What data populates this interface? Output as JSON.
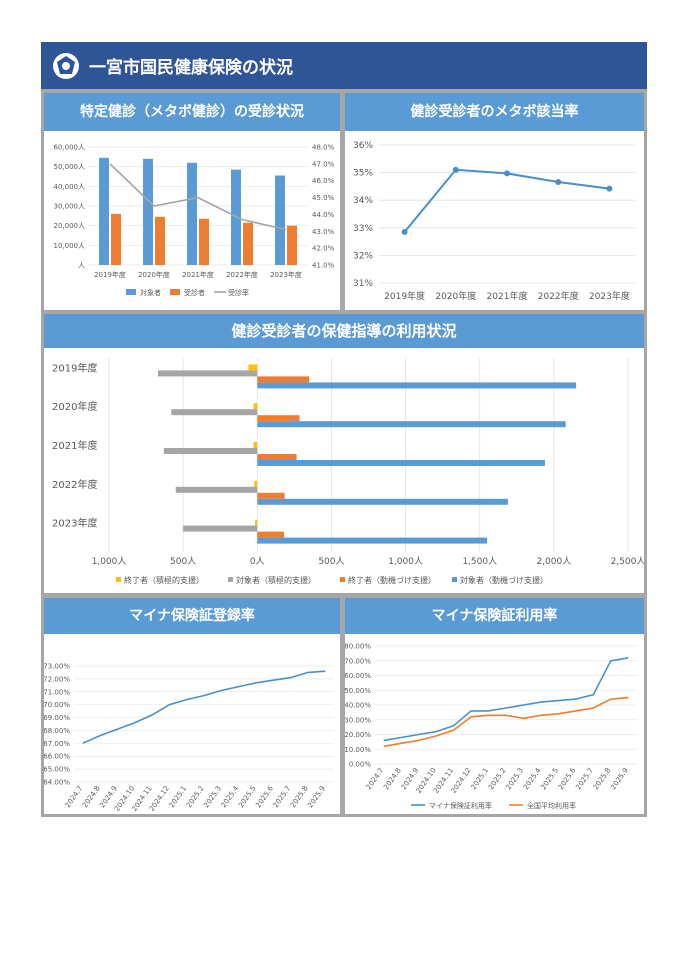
{
  "page": {
    "title": "一宮市国民健康保険の状況"
  },
  "colors": {
    "blue": "#5b9bd5",
    "orange": "#ed7d31",
    "gray": "#a5a5a5",
    "yellow": "#ffc000",
    "header": "#2f5597",
    "line": "#4a90c8"
  },
  "chart_data": [
    {
      "id": "checkup",
      "type": "bar",
      "title": "特定健診（メタボ健診）の受診状況",
      "categories": [
        "2019年度",
        "2020年度",
        "2021年度",
        "2022年度",
        "2023年度"
      ],
      "series": [
        {
          "name": "対象者",
          "kind": "bar",
          "axis": "left",
          "values": [
            54500,
            54000,
            52000,
            48500,
            45500
          ]
        },
        {
          "name": "受診者",
          "kind": "bar",
          "axis": "left",
          "values": [
            26000,
            24500,
            23500,
            21500,
            20000
          ]
        },
        {
          "name": "受診率",
          "kind": "line",
          "axis": "right",
          "values": [
            0.47,
            0.445,
            0.45,
            0.437,
            0.431
          ]
        }
      ],
      "ylim": [
        0,
        60000
      ],
      "y_ticks": [
        "人",
        "10,000人",
        "20,000人",
        "30,000人",
        "40,000人",
        "50,000人",
        "60,000人"
      ],
      "y2lim": [
        0.41,
        0.48
      ],
      "y2_ticks": [
        "41.0%",
        "42.0%",
        "43.0%",
        "44.0%",
        "45.0%",
        "46.0%",
        "47.0%",
        "48.0%"
      ],
      "legend": "bottom"
    },
    {
      "id": "metabo",
      "type": "line",
      "title": "健診受診者のメタボ該当率",
      "categories": [
        "2019年度",
        "2020年度",
        "2021年度",
        "2022年度",
        "2023年度"
      ],
      "values": [
        0.3285,
        0.351,
        0.3497,
        0.3466,
        0.3442
      ],
      "ylim": [
        0.31,
        0.36
      ],
      "y_ticks": [
        "31%",
        "32%",
        "33%",
        "34%",
        "35%",
        "36%"
      ]
    },
    {
      "id": "guidance",
      "type": "bar",
      "orientation": "horizontal",
      "title": "健診受診者の保健指導の利用状況",
      "categories": [
        "2019年度",
        "2020年度",
        "2021年度",
        "2022年度",
        "2023年度"
      ],
      "series": [
        {
          "name": "終了者（積極的支援）",
          "side": "left",
          "values": [
            60,
            25,
            25,
            20,
            15
          ]
        },
        {
          "name": "対象者（積極的支援）",
          "side": "left",
          "values": [
            670,
            580,
            630,
            550,
            500
          ]
        },
        {
          "name": "終了者（動機づけ支援）",
          "side": "right",
          "values": [
            350,
            285,
            265,
            185,
            180
          ]
        },
        {
          "name": "対象者（動機づけ支援）",
          "side": "right",
          "values": [
            2150,
            2080,
            1940,
            1690,
            1550
          ]
        }
      ],
      "xlim": [
        -1000,
        2500
      ],
      "x_ticks": [
        "1,000人",
        "500人",
        "0人",
        "500人",
        "1,000人",
        "1,500人",
        "2,000人",
        "2,500人"
      ],
      "legend": "bottom"
    },
    {
      "id": "myna_reg",
      "type": "line",
      "title": "マイナ保険証登録率",
      "categories": [
        "2024.7",
        "2024.8",
        "2024.9",
        "2024.10",
        "2024.11",
        "2024.12",
        "2025.1",
        "2025.2",
        "2025.3",
        "2025.4",
        "2025.5",
        "2025.6",
        "2025.7",
        "2025.8",
        "2025.9"
      ],
      "values": [
        0.67,
        0.676,
        0.681,
        0.686,
        0.692,
        0.7,
        0.704,
        0.707,
        0.711,
        0.714,
        0.717,
        0.719,
        0.721,
        0.725,
        0.726
      ],
      "ylim": [
        0.64,
        0.73
      ],
      "y_ticks": [
        "64.00%",
        "65.00%",
        "66.00%",
        "67.00%",
        "68.00%",
        "69.00%",
        "70.00%",
        "71.00%",
        "72.00%",
        "73.00%"
      ]
    },
    {
      "id": "myna_use",
      "type": "line",
      "title": "マイナ保険証利用率",
      "categories": [
        "2024.7",
        "2024.8",
        "2024.9",
        "2024.10",
        "2024.11",
        "2024.12",
        "2025.1",
        "2025.2",
        "2025.3",
        "2025.4",
        "2025.5",
        "2025.6",
        "2025.7",
        "2025.8",
        "2025.9"
      ],
      "series": [
        {
          "name": "マイナ保険証利用率",
          "values": [
            0.16,
            0.18,
            0.2,
            0.22,
            0.26,
            0.36,
            0.36,
            0.38,
            0.4,
            0.42,
            0.43,
            0.44,
            0.47,
            0.7,
            0.72
          ]
        },
        {
          "name": "全国平均利用率",
          "values": [
            0.12,
            0.14,
            0.16,
            0.19,
            0.23,
            0.32,
            0.33,
            0.33,
            0.31,
            0.33,
            0.34,
            0.36,
            0.38,
            0.44,
            0.45
          ]
        }
      ],
      "ylim": [
        0,
        0.8
      ],
      "y_ticks": [
        "0.00%",
        "10.00%",
        "20.00%",
        "30.00%",
        "40.00%",
        "50.00%",
        "60.00%",
        "70.00%",
        "80.00%"
      ],
      "legend": "bottom"
    }
  ]
}
